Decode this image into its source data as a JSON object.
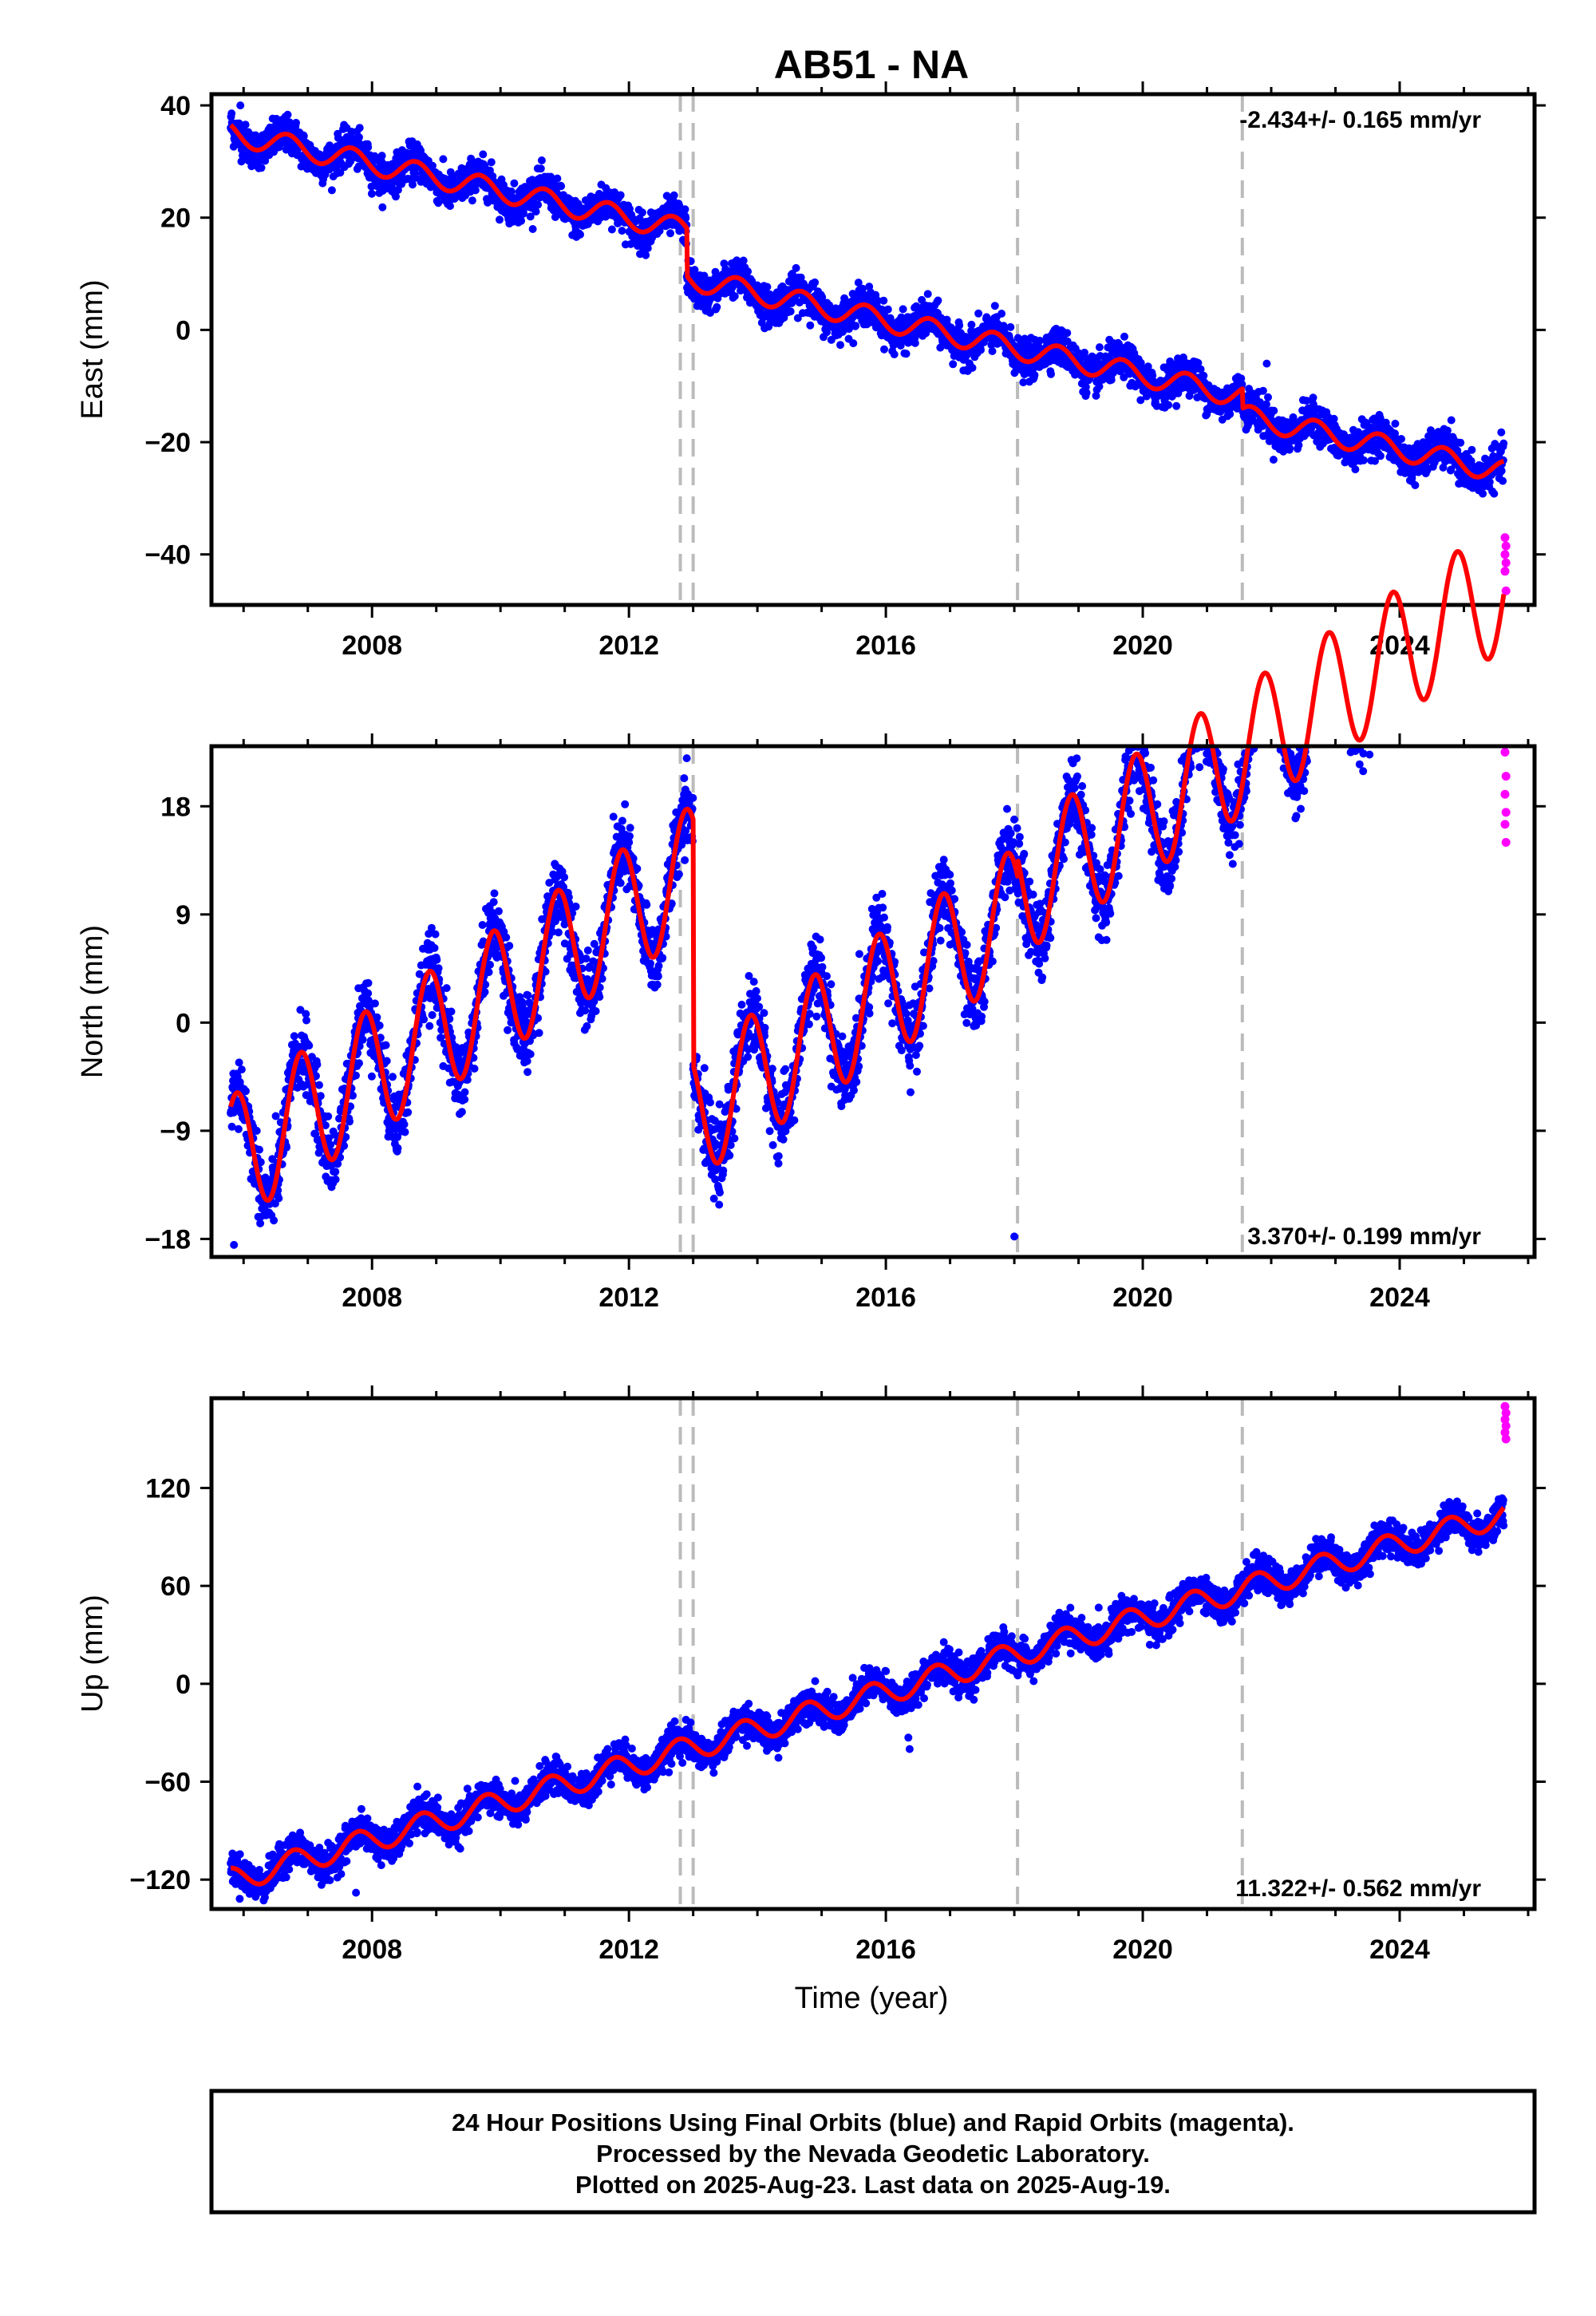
{
  "chart_data": {
    "type": "scatter",
    "title": "AB51 - NA",
    "xlabel": "Time (year)",
    "x_ticks": [
      2008,
      2012,
      2016,
      2020,
      2024
    ],
    "x_range": [
      2005.5,
      2026.1
    ],
    "discontinuities": [
      2012.8,
      2013.0,
      2018.05,
      2021.55
    ],
    "colors": {
      "final": "#0000ff",
      "rapid": "#ff00ff",
      "model": "#ff0000",
      "break_line": "#bbbbbb"
    },
    "legend": [
      {
        "name": "Final Orbits",
        "color": "#0000ff"
      },
      {
        "name": "Rapid Orbits",
        "color": "#ff00ff"
      }
    ],
    "panels": [
      {
        "ylabel": "East (mm)",
        "ylim": [
          -49,
          42
        ],
        "y_ticks": [
          40,
          20,
          0,
          -20,
          -40
        ],
        "y_tick_labels": [
          "40",
          "20",
          "0",
          "−20",
          "−40"
        ],
        "rate_text": "-2.434+/- 0.165 mm/yr",
        "rate_position": "top-right",
        "model": {
          "start": 2005.8,
          "end": 2025.62,
          "start_value": 36.5,
          "rate": -2.434,
          "amplitude": 2.0,
          "phase": 2.3,
          "offsets": [
            {
              "t": 2012.9,
              "value": -8.5
            },
            {
              "t": 2021.55,
              "value": -3.5
            }
          ]
        },
        "noise": 1.6,
        "outliers": [
          {
            "t": 2021.93,
            "value": -6
          },
          {
            "t": 2021.95,
            "value": -12
          },
          {
            "t": 2021.97,
            "value": -18
          },
          {
            "t": 2005.95,
            "value": 40
          }
        ],
        "rapid": [
          -37,
          -38.5,
          -40,
          -41.5,
          -43,
          -46.5
        ]
      },
      {
        "ylabel": "North (mm)",
        "ylim": [
          -19.5,
          23
        ],
        "y_ticks": [
          18,
          9,
          0,
          -9,
          -18
        ],
        "y_tick_labels": [
          "18",
          "9",
          "0",
          "−9",
          "−18"
        ],
        "rate_text": "3.370+/- 0.199 mm/yr",
        "rate_position": "bottom-right",
        "model": {
          "start": 2005.8,
          "end": 2025.62,
          "start_value": -7,
          "rate": 3.37,
          "amplitude": 5.3,
          "phase": 1.0,
          "offsets": [
            {
              "t": 2013.0,
              "value": -20.5
            },
            {
              "t": 2018.05,
              "value": 1.5
            }
          ]
        },
        "noise": 1.5,
        "outliers": [
          {
            "t": 2017.6,
            "value": 7
          },
          {
            "t": 2018.0,
            "value": -17.8
          },
          {
            "t": 2005.85,
            "value": -18.5
          },
          {
            "t": 2012.9,
            "value": 22
          }
        ],
        "rapid": [
          22.5,
          20.5,
          19,
          17.5,
          16.5,
          15
        ]
      },
      {
        "ylabel": "Up (mm)",
        "ylim": [
          -138,
          175
        ],
        "y_ticks": [
          120,
          60,
          0,
          -60,
          -120
        ],
        "y_tick_labels": [
          "120",
          "60",
          "0",
          "−60",
          "−120"
        ],
        "rate_text": "11.322+/- 0.562 mm/yr",
        "rate_position": "bottom-right",
        "model": {
          "start": 2005.8,
          "end": 2025.62,
          "start_value": -113,
          "rate": 11.322,
          "amplitude": 7.5,
          "phase": 1.7,
          "offsets": []
        },
        "noise": 5.0,
        "outliers": [
          {
            "t": 2016.35,
            "value": -33
          },
          {
            "t": 2016.37,
            "value": -40
          },
          {
            "t": 2007.75,
            "value": -128
          }
        ],
        "rapid": [
          170,
          166,
          162,
          158,
          154,
          150
        ]
      }
    ],
    "footer": [
      "24 Hour Positions Using Final Orbits (blue) and Rapid Orbits (magenta).",
      "Processed by the Nevada Geodetic Laboratory.",
      "Plotted on 2025-Aug-23. Last data on 2025-Aug-19."
    ]
  }
}
